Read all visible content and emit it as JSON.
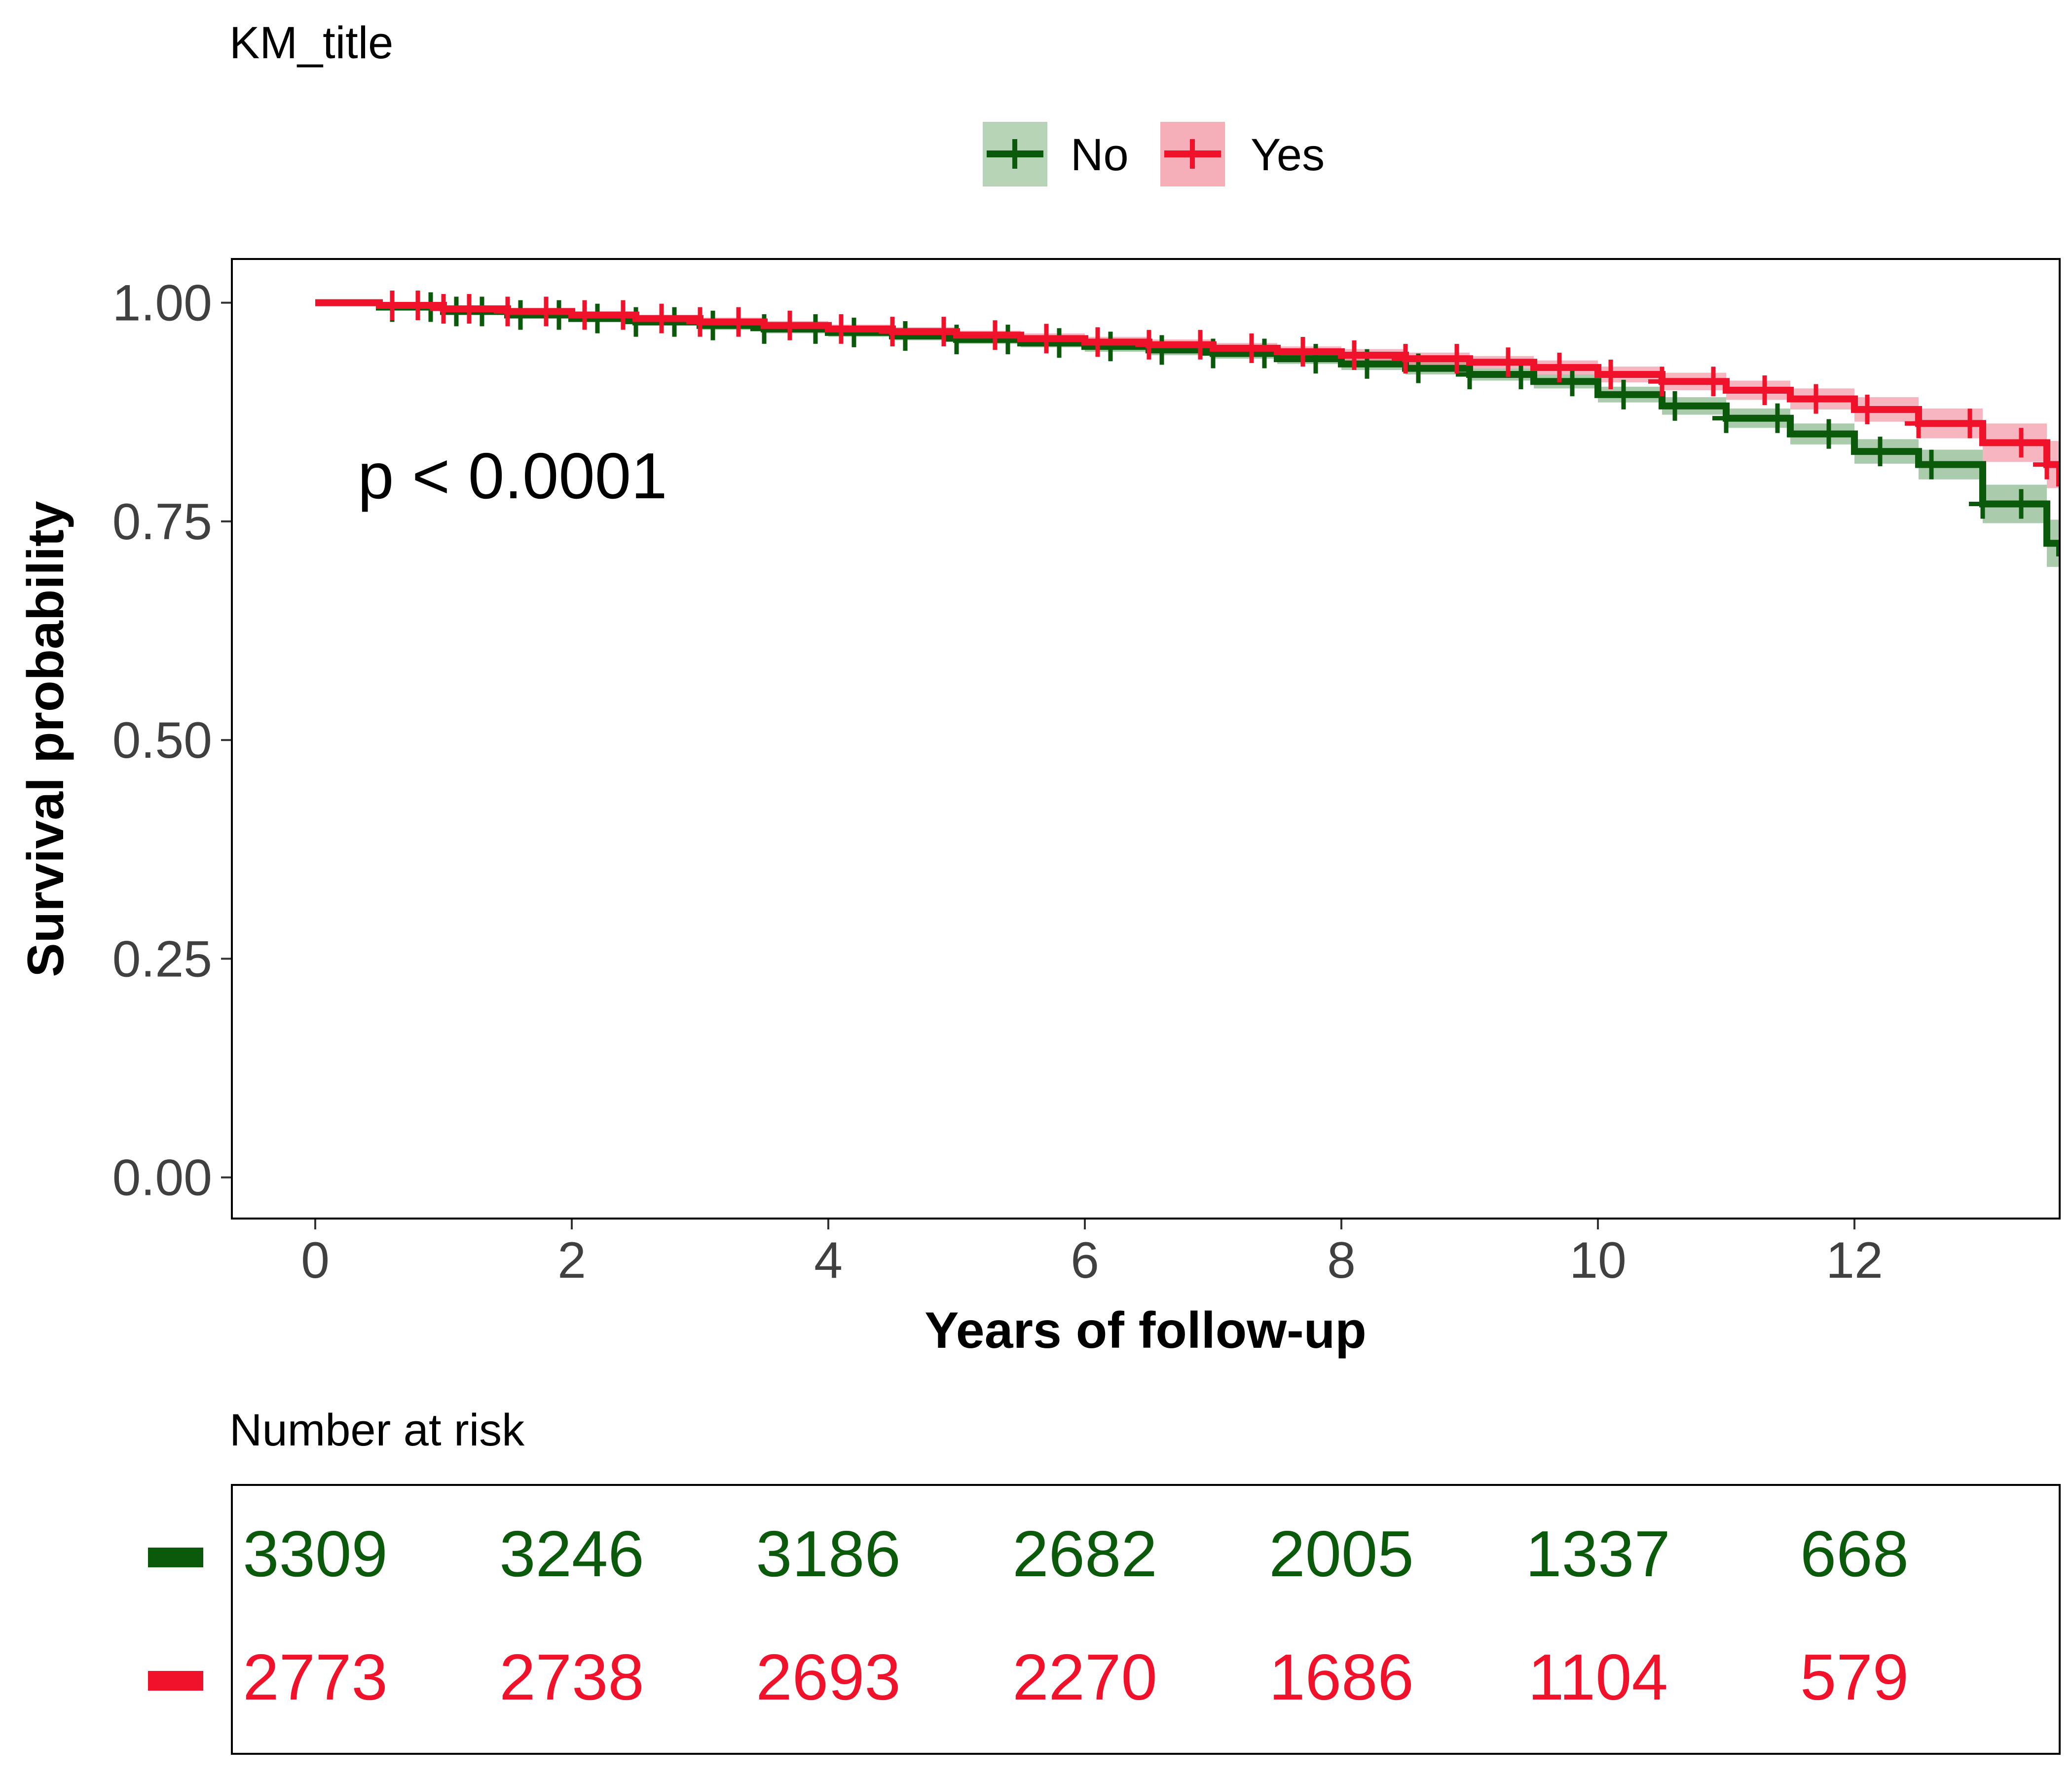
{
  "chart_data": {
    "type": "line",
    "title": "KM_title",
    "xlabel": "Years of follow-up",
    "ylabel": "Survival probability",
    "xlim": [
      -0.65,
      13.6
    ],
    "ylim": [
      -0.047,
      1.05
    ],
    "x_ticks": [
      "0",
      "2",
      "4",
      "6",
      "8",
      "10",
      "12"
    ],
    "x_tick_values": [
      0,
      2,
      4,
      6,
      8,
      10,
      12
    ],
    "y_ticks": [
      "0.00",
      "0.25",
      "0.50",
      "0.75",
      "1.00"
    ],
    "y_tick_values": [
      0,
      0.25,
      0.5,
      0.75,
      1.0
    ],
    "grid": false,
    "legend_position": "top",
    "annotation": "p < 0.0001",
    "series": [
      {
        "name": "No",
        "color": "#0B5A0B",
        "band_color": "#2E7D32",
        "x": [
          0,
          0.5,
          1,
          1.5,
          2,
          2.5,
          3,
          3.5,
          4,
          4.5,
          5,
          5.5,
          6,
          6.5,
          7,
          7.5,
          8,
          8.5,
          9,
          9.5,
          10,
          10.5,
          11,
          11.5,
          12,
          12.5,
          13,
          13.5,
          13.6
        ],
        "y": [
          1.0,
          0.995,
          0.99,
          0.986,
          0.982,
          0.978,
          0.974,
          0.97,
          0.966,
          0.962,
          0.958,
          0.954,
          0.95,
          0.946,
          0.942,
          0.936,
          0.93,
          0.925,
          0.918,
          0.91,
          0.895,
          0.882,
          0.868,
          0.85,
          0.83,
          0.815,
          0.77,
          0.725,
          0.71
        ],
        "upper": [
          1.0,
          0.997,
          0.993,
          0.99,
          0.986,
          0.982,
          0.979,
          0.975,
          0.971,
          0.967,
          0.963,
          0.959,
          0.956,
          0.952,
          0.948,
          0.942,
          0.937,
          0.932,
          0.925,
          0.918,
          0.904,
          0.892,
          0.879,
          0.862,
          0.844,
          0.832,
          0.792,
          0.752,
          0.74
        ],
        "lower": [
          1.0,
          0.993,
          0.987,
          0.982,
          0.978,
          0.974,
          0.969,
          0.965,
          0.961,
          0.957,
          0.953,
          0.949,
          0.944,
          0.94,
          0.936,
          0.93,
          0.923,
          0.918,
          0.911,
          0.902,
          0.886,
          0.872,
          0.857,
          0.838,
          0.816,
          0.798,
          0.748,
          0.698,
          0.68
        ],
        "censor_x": [
          0.6,
          0.9,
          1.1,
          1.3,
          1.6,
          1.9,
          2.2,
          2.5,
          2.8,
          3.1,
          3.5,
          3.9,
          4.2,
          4.6,
          5.0,
          5.4,
          5.8,
          6.2,
          6.6,
          7.0,
          7.4,
          7.8,
          8.2,
          8.6,
          9.0,
          9.4,
          9.8,
          10.2,
          10.6,
          11.0,
          11.4,
          11.8,
          12.2,
          12.6,
          13.0,
          13.3
        ]
      },
      {
        "name": "Yes",
        "color": "#F0112B",
        "band_color": "#F07A8A",
        "x": [
          0,
          0.5,
          1,
          1.5,
          2,
          2.5,
          3,
          3.5,
          4,
          4.5,
          5,
          5.5,
          6,
          6.5,
          7,
          7.5,
          8,
          8.5,
          9,
          9.5,
          10,
          10.5,
          11,
          11.5,
          12,
          12.5,
          13,
          13.5,
          13.6
        ],
        "y": [
          1.0,
          0.997,
          0.993,
          0.99,
          0.986,
          0.982,
          0.978,
          0.974,
          0.97,
          0.967,
          0.963,
          0.959,
          0.955,
          0.952,
          0.948,
          0.944,
          0.94,
          0.936,
          0.932,
          0.926,
          0.918,
          0.91,
          0.9,
          0.89,
          0.878,
          0.862,
          0.84,
          0.815,
          0.79
        ],
        "upper": [
          1.0,
          0.999,
          0.996,
          0.993,
          0.99,
          0.986,
          0.983,
          0.979,
          0.975,
          0.972,
          0.968,
          0.965,
          0.961,
          0.958,
          0.954,
          0.95,
          0.947,
          0.943,
          0.939,
          0.934,
          0.927,
          0.92,
          0.911,
          0.902,
          0.892,
          0.879,
          0.862,
          0.842,
          0.83
        ],
        "lower": [
          1.0,
          0.995,
          0.99,
          0.987,
          0.982,
          0.978,
          0.973,
          0.969,
          0.965,
          0.962,
          0.958,
          0.953,
          0.949,
          0.946,
          0.942,
          0.938,
          0.933,
          0.929,
          0.925,
          0.918,
          0.909,
          0.9,
          0.889,
          0.878,
          0.864,
          0.845,
          0.818,
          0.788,
          0.75
        ],
        "censor_x": [
          0.6,
          0.8,
          1.0,
          1.2,
          1.5,
          1.8,
          2.1,
          2.4,
          2.7,
          3.0,
          3.3,
          3.7,
          4.1,
          4.5,
          4.9,
          5.3,
          5.7,
          6.1,
          6.5,
          6.9,
          7.3,
          7.7,
          8.1,
          8.5,
          8.9,
          9.3,
          9.7,
          10.1,
          10.5,
          10.9,
          11.3,
          11.7,
          12.1,
          12.5,
          12.9,
          13.3,
          13.5
        ]
      }
    ]
  },
  "risk_table": {
    "title": "Number at risk",
    "times": [
      0,
      2,
      4,
      6,
      8,
      10,
      12
    ],
    "rows": [
      {
        "name": "No",
        "color": "#0B5A0B",
        "counts": [
          "3309",
          "3246",
          "3186",
          "2682",
          "2005",
          "1337",
          "668"
        ]
      },
      {
        "name": "Yes",
        "color": "#F0112B",
        "counts": [
          "2773",
          "2738",
          "2693",
          "2270",
          "1686",
          "1104",
          "579"
        ]
      }
    ]
  }
}
